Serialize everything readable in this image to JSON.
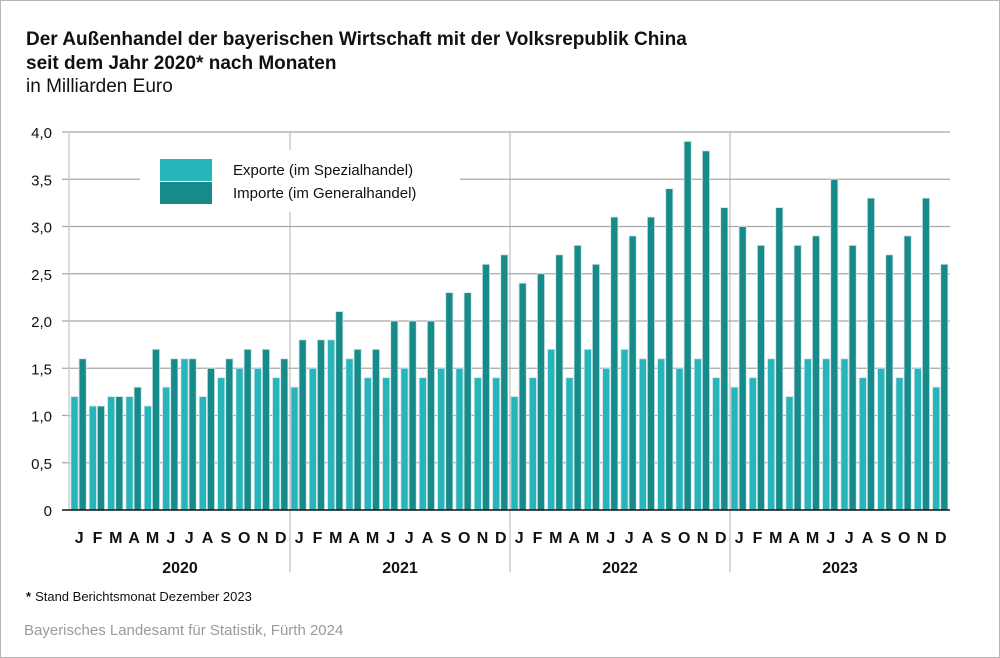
{
  "title_line1": "Der Außenhandel der bayerischen Wirtschaft mit der Volksrepublik China",
  "title_line2": "seit dem Jahr 2020* nach Monaten",
  "unit": "in Milliarden Euro",
  "footnote_star": "*",
  "footnote_text": "Stand Berichtsmonat Dezember 2023",
  "source": "Bayerisches Landesamt für Statistik, Fürth 2024",
  "chart_data": {
    "type": "bar",
    "title": "Der Außenhandel der bayerischen Wirtschaft mit der Volksrepublik China seit dem Jahr 2020* nach Monaten",
    "ylabel": "in Milliarden Euro",
    "xlabel": "",
    "ylim": [
      0,
      4.0
    ],
    "yticks": [
      0,
      0.5,
      1.0,
      1.5,
      2.0,
      2.5,
      3.0,
      3.5,
      4.0
    ],
    "ytick_labels": [
      "0",
      "0,5",
      "1,0",
      "1,5",
      "2,0",
      "2,5",
      "3,0",
      "3,5",
      "4,0"
    ],
    "grid": true,
    "legend_position": "top-left",
    "years": [
      "2020",
      "2021",
      "2022",
      "2023"
    ],
    "month_labels": [
      "J",
      "F",
      "M",
      "A",
      "M",
      "J",
      "J",
      "A",
      "S",
      "O",
      "N",
      "D"
    ],
    "categories": [
      "2020-01",
      "2020-02",
      "2020-03",
      "2020-04",
      "2020-05",
      "2020-06",
      "2020-07",
      "2020-08",
      "2020-09",
      "2020-10",
      "2020-11",
      "2020-12",
      "2021-01",
      "2021-02",
      "2021-03",
      "2021-04",
      "2021-05",
      "2021-06",
      "2021-07",
      "2021-08",
      "2021-09",
      "2021-10",
      "2021-11",
      "2021-12",
      "2022-01",
      "2022-02",
      "2022-03",
      "2022-04",
      "2022-05",
      "2022-06",
      "2022-07",
      "2022-08",
      "2022-09",
      "2022-10",
      "2022-11",
      "2022-12",
      "2023-01",
      "2023-02",
      "2023-03",
      "2023-04",
      "2023-05",
      "2023-06",
      "2023-07",
      "2023-08",
      "2023-09",
      "2023-10",
      "2023-11",
      "2023-12"
    ],
    "series": [
      {
        "name": "Exporte (im Spezialhandel)",
        "color": "#26b5bb",
        "values": [
          1.2,
          1.1,
          1.2,
          1.2,
          1.1,
          1.3,
          1.6,
          1.2,
          1.4,
          1.5,
          1.5,
          1.4,
          1.3,
          1.5,
          1.8,
          1.6,
          1.4,
          1.4,
          1.5,
          1.4,
          1.5,
          1.5,
          1.4,
          1.4,
          1.2,
          1.4,
          1.7,
          1.4,
          1.7,
          1.5,
          1.7,
          1.6,
          1.6,
          1.5,
          1.6,
          1.4,
          1.3,
          1.4,
          1.6,
          1.2,
          1.6,
          1.6,
          1.6,
          1.4,
          1.5,
          1.4,
          1.5,
          1.3
        ]
      },
      {
        "name": "Importe (im Generalhandel)",
        "color": "#178a8a",
        "values": [
          1.6,
          1.1,
          1.2,
          1.3,
          1.7,
          1.6,
          1.6,
          1.5,
          1.6,
          1.7,
          1.7,
          1.6,
          1.8,
          1.8,
          2.1,
          1.7,
          1.7,
          2.0,
          2.0,
          2.0,
          2.3,
          2.3,
          2.6,
          2.7,
          2.4,
          2.5,
          2.7,
          2.8,
          2.6,
          3.1,
          2.9,
          3.1,
          3.4,
          3.9,
          3.8,
          3.2,
          3.0,
          2.8,
          3.2,
          2.8,
          2.9,
          3.5,
          2.8,
          3.3,
          2.7,
          2.9,
          3.3,
          2.6
        ]
      }
    ]
  }
}
